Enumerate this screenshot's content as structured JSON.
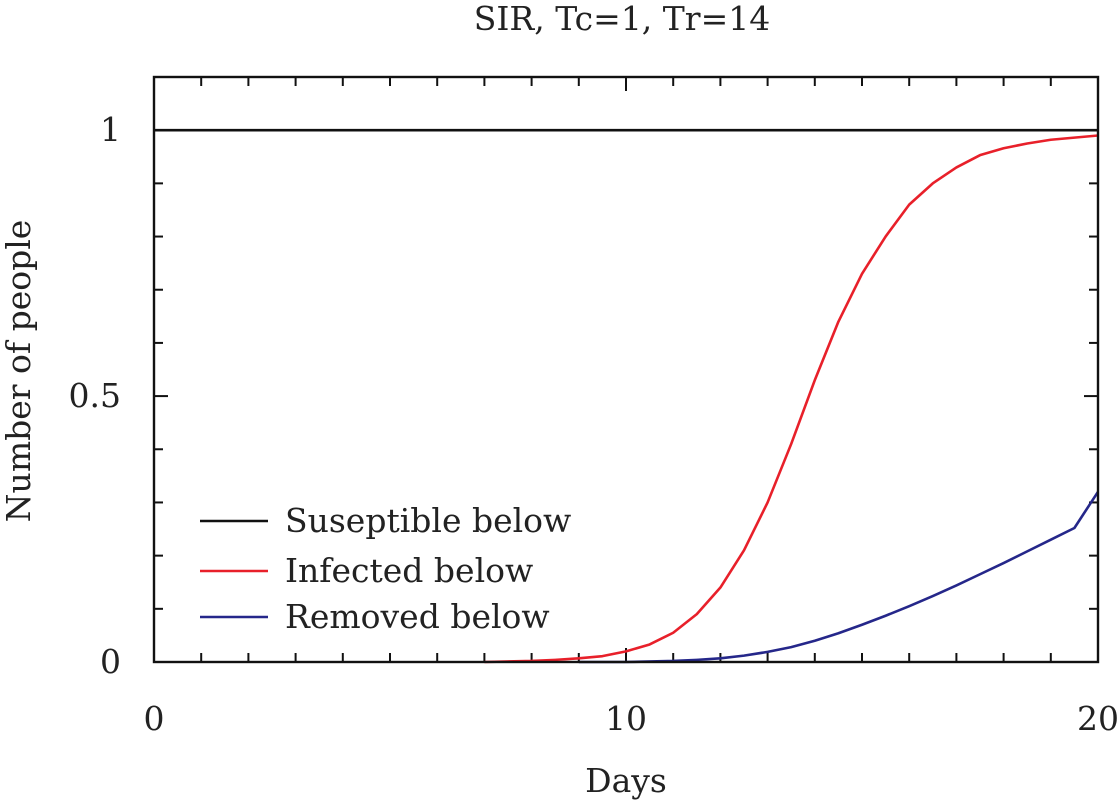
{
  "chart_data": {
    "type": "line",
    "title": "SIR, Tc=1, Tr=14",
    "xlabel": "Days",
    "ylabel": "Number of people",
    "xlim": [
      0,
      20
    ],
    "ylim": [
      0,
      1.1
    ],
    "xticks": [
      0,
      10,
      20
    ],
    "yticks": [
      0,
      0.5,
      1
    ],
    "xtick_labels": [
      "0",
      "10",
      "20"
    ],
    "ytick_labels": [
      "0",
      "0.5",
      "1"
    ],
    "x_minor_step": 1,
    "y_minor_step": 0.1,
    "grid": false,
    "legend_position": "lower-left",
    "series": [
      {
        "name": "Suseptible below",
        "color": "#111111",
        "x": [
          0,
          2,
          4,
          6,
          8,
          10,
          12,
          14,
          16,
          18,
          20
        ],
        "y": [
          1,
          1,
          1,
          1,
          1,
          1,
          1,
          1,
          1,
          1,
          1
        ]
      },
      {
        "name": "Infected below",
        "color": "#e8202a",
        "x": [
          7,
          8,
          8.5,
          9,
          9.5,
          10,
          10.5,
          11,
          11.5,
          12,
          12.5,
          13,
          13.5,
          14,
          14.5,
          15,
          15.5,
          16,
          16.5,
          17,
          17.5,
          18,
          18.5,
          19,
          19.5,
          20
        ],
        "y": [
          0.0,
          0.002,
          0.004,
          0.007,
          0.011,
          0.02,
          0.033,
          0.055,
          0.09,
          0.14,
          0.21,
          0.3,
          0.41,
          0.53,
          0.64,
          0.73,
          0.8,
          0.86,
          0.9,
          0.93,
          0.953,
          0.966,
          0.975,
          0.982,
          0.986,
          0.99
        ]
      },
      {
        "name": "Removed below",
        "color": "#25278a",
        "x": [
          9,
          10,
          11,
          11.5,
          12,
          12.5,
          13,
          13.5,
          14,
          14.5,
          15,
          15.5,
          16,
          16.5,
          17,
          17.5,
          18,
          18.5,
          19,
          19.5,
          20
        ],
        "y": [
          0.0,
          0.0,
          0.002,
          0.004,
          0.007,
          0.012,
          0.019,
          0.028,
          0.04,
          0.054,
          0.07,
          0.087,
          0.105,
          0.124,
          0.144,
          0.165,
          0.186,
          0.208,
          0.23,
          0.252,
          0.32
        ]
      }
    ]
  }
}
